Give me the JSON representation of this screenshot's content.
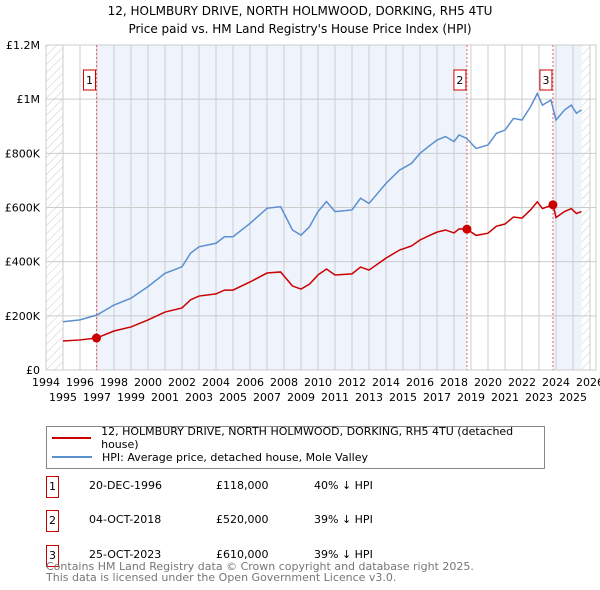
{
  "title": "12, HOLMBURY DRIVE, NORTH HOLMWOOD, DORKING, RH5 4TU",
  "subtitle": "Price paid vs. HM Land Registry's House Price Index (HPI)",
  "chart_data": {
    "type": "line",
    "xlim": [
      1994,
      2026
    ],
    "ylim": [
      0,
      1200000
    ],
    "x_ticks": [
      1994,
      1995,
      1996,
      1997,
      1998,
      1999,
      2000,
      2001,
      2002,
      2003,
      2004,
      2005,
      2006,
      2007,
      2008,
      2009,
      2010,
      2011,
      2012,
      2013,
      2014,
      2015,
      2016,
      2017,
      2018,
      2019,
      2020,
      2021,
      2022,
      2023,
      2024,
      2025,
      2026
    ],
    "y_ticks": [
      {
        "v": 0,
        "label": "£0"
      },
      {
        "v": 200000,
        "label": "£200K"
      },
      {
        "v": 400000,
        "label": "£400K"
      },
      {
        "v": 600000,
        "label": "£600K"
      },
      {
        "v": 800000,
        "label": "£800K"
      },
      {
        "v": 1000000,
        "label": "£1M"
      },
      {
        "v": 1200000,
        "label": "£1.2M"
      }
    ],
    "grid": true,
    "series": [
      {
        "name": "HPI: Average price, detached house, Mole Valley",
        "color": "#5b8fd0",
        "x": [
          1995,
          1996,
          1997,
          1998,
          1999,
          2000,
          2001,
          2002,
          2002.5,
          2003,
          2004,
          2004.5,
          2005,
          2006,
          2007,
          2007.8,
          2008.5,
          2009,
          2009.5,
          2010,
          2010.5,
          2011,
          2012,
          2012.5,
          2013,
          2014,
          2014.8,
          2015.5,
          2016,
          2016.5,
          2017,
          2017.5,
          2018,
          2018.3,
          2018.75,
          2019.3,
          2020,
          2020.5,
          2021,
          2021.5,
          2022,
          2022.5,
          2022.9,
          2023.2,
          2023.7,
          2024,
          2024.5,
          2024.9,
          2025.2,
          2025.5
        ],
        "y": [
          178000,
          185000,
          203000,
          240000,
          265000,
          308000,
          357000,
          381000,
          431000,
          455000,
          468000,
          492000,
          492000,
          541000,
          597000,
          603000,
          517000,
          498000,
          529000,
          585000,
          622000,
          585000,
          591000,
          634000,
          615000,
          689000,
          738000,
          763000,
          800000,
          825000,
          849000,
          862000,
          843000,
          868000,
          855000,
          818000,
          831000,
          874000,
          886000,
          929000,
          923000,
          972000,
          1021000,
          978000,
          997000,
          923000,
          960000,
          978000,
          948000,
          960000
        ]
      },
      {
        "name": "12, HOLMBURY DRIVE, NORTH HOLMWOOD, DORKING, RH5 4TU (detached house)",
        "color": "#cc0000",
        "x": [
          1995,
          1996,
          1996.97,
          1998,
          1999,
          2000,
          2001,
          2002,
          2002.5,
          2003,
          2004,
          2004.5,
          2005,
          2006,
          2007,
          2007.8,
          2008.5,
          2009,
          2009.5,
          2010,
          2010.5,
          2011,
          2012,
          2012.5,
          2013,
          2014,
          2014.8,
          2015.5,
          2016,
          2016.5,
          2017,
          2017.5,
          2018,
          2018.3,
          2018.76,
          2019.3,
          2020,
          2020.5,
          2021,
          2021.5,
          2022,
          2022.5,
          2022.9,
          2023.2,
          2023.82,
          2024,
          2024.5,
          2024.9,
          2025.2,
          2025.5
        ],
        "y": [
          107000,
          111000,
          118000,
          144000,
          159000,
          185000,
          214000,
          229000,
          259000,
          273000,
          281000,
          295000,
          295000,
          325000,
          358000,
          362000,
          310000,
          299000,
          317000,
          351000,
          373000,
          351000,
          355000,
          380000,
          369000,
          413000,
          443000,
          458000,
          480000,
          495000,
          509000,
          517000,
          506000,
          521000,
          520000,
          497000,
          505000,
          531000,
          539000,
          565000,
          561000,
          591000,
          621000,
          596000,
          610000,
          563000,
          585000,
          596000,
          578000,
          585000
        ]
      }
    ],
    "sales": [
      {
        "label": "1",
        "x": 1996.97,
        "y": 118000
      },
      {
        "label": "2",
        "x": 2018.76,
        "y": 520000
      },
      {
        "label": "3",
        "x": 2023.82,
        "y": 610000
      }
    ],
    "legend_placement": "below"
  },
  "legend": [
    {
      "label": "12, HOLMBURY DRIVE, NORTH HOLMWOOD, DORKING, RH5 4TU (detached house)",
      "color": "#cc0000"
    },
    {
      "label": "HPI: Average price, detached house, Mole Valley",
      "color": "#5b8fd0"
    }
  ],
  "transactions": [
    {
      "num": "1",
      "date": "20-DEC-1996",
      "price": "£118,000",
      "hpi": "40% ↓ HPI"
    },
    {
      "num": "2",
      "date": "04-OCT-2018",
      "price": "£520,000",
      "hpi": "39% ↓ HPI"
    },
    {
      "num": "3",
      "date": "25-OCT-2023",
      "price": "£610,000",
      "hpi": "39% ↓ HPI"
    }
  ],
  "footer": {
    "line1": "Contains HM Land Registry data © Crown copyright and database right 2025.",
    "line2": "This data is licensed under the Open Government Licence v3.0."
  }
}
